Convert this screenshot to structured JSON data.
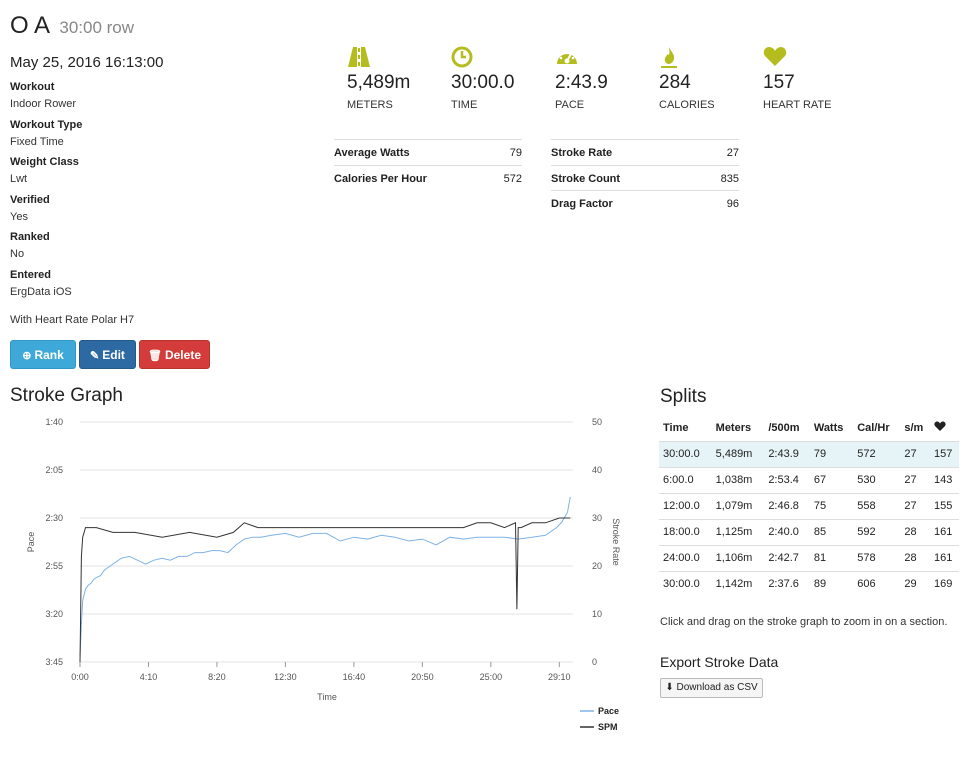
{
  "header": {
    "title": "O A",
    "subtitle": "30:00 row",
    "date": "May 25, 2016 16:13:00"
  },
  "meta": [
    {
      "label": "Workout",
      "value": "Indoor Rower"
    },
    {
      "label": "Workout Type",
      "value": "Fixed Time"
    },
    {
      "label": "Weight Class",
      "value": "Lwt"
    },
    {
      "label": "Verified",
      "value": "Yes"
    },
    {
      "label": "Ranked",
      "value": "No"
    },
    {
      "label": "Entered",
      "value": "ErgData iOS"
    }
  ],
  "heart_rate_note": "With Heart Rate Polar H7",
  "stats": [
    {
      "icon": "road-icon",
      "value": "5,489m",
      "label": "METERS"
    },
    {
      "icon": "clock-icon",
      "value": "30:00.0",
      "label": "TIME"
    },
    {
      "icon": "speedometer-icon",
      "value": "2:43.9",
      "label": "PACE"
    },
    {
      "icon": "flame-icon",
      "value": "284",
      "label": "CALORIES"
    },
    {
      "icon": "heart-icon",
      "value": "157",
      "label": "HEART RATE"
    }
  ],
  "details_left": [
    {
      "label": "Average Watts",
      "value": "79"
    },
    {
      "label": "Calories Per Hour",
      "value": "572"
    }
  ],
  "details_right": [
    {
      "label": "Stroke Rate",
      "value": "27"
    },
    {
      "label": "Stroke Count",
      "value": "835"
    },
    {
      "label": "Drag Factor",
      "value": "96"
    }
  ],
  "buttons": {
    "rank": "Rank",
    "edit": "Edit",
    "delete": "Delete"
  },
  "colors": {
    "accent": "#b5bd1e",
    "pace_line": "#7fb2e5",
    "spm_line": "#333333"
  },
  "stroke_graph": {
    "heading": "Stroke Graph"
  },
  "chart_data": {
    "type": "line",
    "title": "Stroke Graph",
    "xlabel": "Time",
    "ylabel_left": "Pace",
    "ylabel_right": "Stroke Rate",
    "x_ticks": [
      "0:00",
      "4:10",
      "8:20",
      "12:30",
      "16:40",
      "20:50",
      "25:00",
      "29:10"
    ],
    "x_tick_seconds": [
      0,
      250,
      500,
      750,
      1000,
      1250,
      1500,
      1750
    ],
    "xlim": [
      0,
      1800
    ],
    "y_left_ticks": [
      "1:40",
      "2:05",
      "2:30",
      "2:55",
      "3:20",
      "3:45"
    ],
    "y_left_seconds": [
      100,
      125,
      150,
      175,
      200,
      225
    ],
    "ylim_left": [
      100,
      225
    ],
    "y_right_ticks": [
      "50",
      "40",
      "30",
      "20",
      "10",
      "0"
    ],
    "ylim_right": [
      0,
      50
    ],
    "grid": true,
    "legend": [
      "Pace",
      "SPM"
    ],
    "legend_position": "bottom-right",
    "series": [
      {
        "name": "Pace",
        "x": [
          0,
          5,
          10,
          20,
          30,
          40,
          50,
          60,
          75,
          90,
          120,
          150,
          180,
          210,
          240,
          270,
          300,
          330,
          360,
          390,
          420,
          450,
          480,
          510,
          540,
          570,
          600,
          630,
          660,
          700,
          750,
          800,
          850,
          900,
          950,
          1000,
          1050,
          1100,
          1150,
          1200,
          1250,
          1300,
          1350,
          1400,
          1450,
          1500,
          1550,
          1600,
          1650,
          1700,
          1720,
          1740,
          1760,
          1780,
          1790
        ],
        "values": [
          222,
          205,
          193,
          187,
          185,
          184,
          182,
          181,
          180,
          177,
          174,
          171,
          170,
          172,
          174,
          172,
          171,
          172,
          170,
          170,
          168,
          168,
          167,
          167,
          168,
          164,
          161,
          160,
          160,
          159,
          158,
          160,
          158,
          158,
          162,
          160,
          161,
          159,
          160,
          162,
          161,
          164,
          160,
          161,
          160,
          160,
          160,
          161,
          160,
          159,
          157,
          155,
          152,
          147,
          139
        ]
      },
      {
        "name": "SPM",
        "x": [
          0,
          5,
          10,
          20,
          30,
          60,
          120,
          200,
          300,
          400,
          500,
          560,
          600,
          650,
          700,
          800,
          900,
          1000,
          1100,
          1200,
          1300,
          1400,
          1450,
          1500,
          1550,
          1590,
          1595,
          1600,
          1610,
          1650,
          1700,
          1750,
          1790
        ],
        "values": [
          0,
          22,
          26,
          28,
          28,
          28,
          27,
          27,
          26,
          27,
          26,
          27,
          29,
          28,
          28,
          28,
          28,
          28,
          28,
          28,
          28,
          28,
          29,
          29,
          28,
          29,
          11,
          28,
          28,
          29,
          29,
          30,
          30
        ]
      }
    ]
  },
  "splits": {
    "heading": "Splits",
    "columns": [
      "Time",
      "Meters",
      "/500m",
      "Watts",
      "Cal/Hr",
      "s/m"
    ],
    "heart_col_icon": "heart-icon",
    "rows": [
      [
        "30:00.0",
        "5,489m",
        "2:43.9",
        "79",
        "572",
        "27",
        "157"
      ],
      [
        "6:00.0",
        "1,038m",
        "2:53.4",
        "67",
        "530",
        "27",
        "143"
      ],
      [
        "12:00.0",
        "1,079m",
        "2:46.8",
        "75",
        "558",
        "27",
        "155"
      ],
      [
        "18:00.0",
        "1,125m",
        "2:40.0",
        "85",
        "592",
        "28",
        "161"
      ],
      [
        "24:00.0",
        "1,106m",
        "2:42.7",
        "81",
        "578",
        "28",
        "161"
      ],
      [
        "30:00.0",
        "1,142m",
        "2:37.6",
        "89",
        "606",
        "29",
        "169"
      ]
    ]
  },
  "note": "Click and drag on the stroke graph to zoom in on a section.",
  "export": {
    "title": "Export Stroke Data",
    "button": "Download as CSV"
  }
}
